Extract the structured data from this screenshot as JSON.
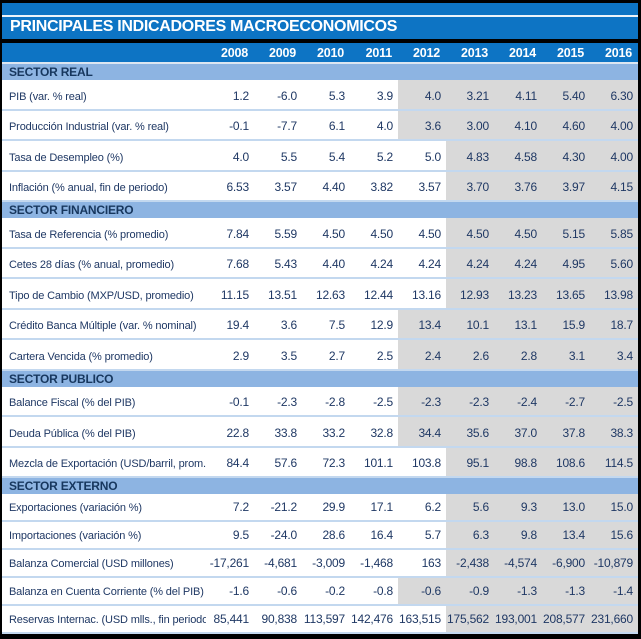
{
  "chart_data": {
    "type": "table",
    "title": "PRINCIPALES INDICADORES MACROECONOMICOS",
    "columns": [
      "2008",
      "2009",
      "2010",
      "2011",
      "2012",
      "2013",
      "2014",
      "2015",
      "2016"
    ],
    "sections": [
      {
        "label": "SECTOR REAL",
        "rows": [
          {
            "label": "PIB (var. % real)",
            "values": [
              "1.2",
              "-6.0",
              "5.3",
              "3.9",
              "4.0",
              "3.21",
              "4.11",
              "5.40",
              "6.30"
            ],
            "gray_from": "2012"
          },
          {
            "label": "Producción Industrial (var. % real)",
            "values": [
              "-0.1",
              "-7.7",
              "6.1",
              "4.0",
              "3.6",
              "3.00",
              "4.10",
              "4.60",
              "4.00"
            ],
            "gray_from": "2012"
          },
          {
            "label": "Tasa de Desempleo (%)",
            "values": [
              "4.0",
              "5.5",
              "5.4",
              "5.2",
              "5.0",
              "4.83",
              "4.58",
              "4.30",
              "4.00"
            ],
            "gray_from": "2013"
          },
          {
            "label": "Inflación (% anual, fin de periodo)",
            "values": [
              "6.53",
              "3.57",
              "4.40",
              "3.82",
              "3.57",
              "3.70",
              "3.76",
              "3.97",
              "4.15"
            ],
            "gray_from": "2013"
          }
        ]
      },
      {
        "label": "SECTOR FINANCIERO",
        "rows": [
          {
            "label": "Tasa de Referencia (% promedio)",
            "values": [
              "7.84",
              "5.59",
              "4.50",
              "4.50",
              "4.50",
              "4.50",
              "4.50",
              "5.15",
              "5.85"
            ],
            "gray_from": "2013"
          },
          {
            "label": "Cetes 28 días (% anual, promedio)",
            "values": [
              "7.68",
              "5.43",
              "4.40",
              "4.24",
              "4.24",
              "4.24",
              "4.24",
              "4.95",
              "5.60"
            ],
            "gray_from": "2013"
          },
          {
            "label": "Tipo de Cambio (MXP/USD, promedio)",
            "values": [
              "11.15",
              "13.51",
              "12.63",
              "12.44",
              "13.16",
              "12.93",
              "13.23",
              "13.65",
              "13.98"
            ],
            "gray_from": "2013"
          },
          {
            "label": "Crédito Banca Múltiple (var. % nominal)",
            "values": [
              "19.4",
              "3.6",
              "7.5",
              "12.9",
              "13.4",
              "10.1",
              "13.1",
              "15.9",
              "18.7"
            ],
            "gray_from": "2012"
          },
          {
            "label": "Cartera Vencida (% promedio)",
            "values": [
              "2.9",
              "3.5",
              "2.7",
              "2.5",
              "2.4",
              "2.6",
              "2.8",
              "3.1",
              "3.4"
            ],
            "gray_from": "2012"
          }
        ]
      },
      {
        "label": "SECTOR PUBLICO",
        "rows": [
          {
            "label": "Balance Fiscal (% del PIB)",
            "values": [
              "-0.1",
              "-2.3",
              "-2.8",
              "-2.5",
              "-2.3",
              "-2.3",
              "-2.4",
              "-2.7",
              "-2.5"
            ],
            "gray_from": "2012"
          },
          {
            "label": "Deuda Pública (% del PIB)",
            "values": [
              "22.8",
              "33.8",
              "33.2",
              "32.8",
              "34.4",
              "35.6",
              "37.0",
              "37.8",
              "38.3"
            ],
            "gray_from": "2012"
          },
          {
            "label": "Mezcla de Exportación (USD/barril, prom.)",
            "values": [
              "84.4",
              "57.6",
              "72.3",
              "101.1",
              "103.8",
              "95.1",
              "98.8",
              "108.6",
              "114.5"
            ],
            "gray_from": "2013"
          }
        ]
      },
      {
        "label": "SECTOR EXTERNO",
        "rows": [
          {
            "label": "Exportaciones (variación %)",
            "values": [
              "7.2",
              "-21.2",
              "29.9",
              "17.1",
              "6.2",
              "5.6",
              "9.3",
              "13.0",
              "15.0"
            ],
            "gray_from": "2013"
          },
          {
            "label": "Importaciones (variación %)",
            "values": [
              "9.5",
              "-24.0",
              "28.6",
              "16.4",
              "5.7",
              "6.3",
              "9.8",
              "13.4",
              "15.6"
            ],
            "gray_from": "2013"
          },
          {
            "label": "Balanza Comercial (USD millones)",
            "values": [
              "-17,261",
              "-4,681",
              "-3,009",
              "-1,468",
              "163",
              "-2,438",
              "-4,574",
              "-6,900",
              "-10,879"
            ],
            "gray_from": "2013"
          },
          {
            "label": "Balanza en Cuenta Corriente (% del PIB)",
            "values": [
              "-1.6",
              "-0.6",
              "-0.2",
              "-0.8",
              "-0.6",
              "-0.9",
              "-1.3",
              "-1.3",
              "-1.4"
            ],
            "gray_from": "2012"
          },
          {
            "label": "Reservas Internac. (USD mlls., fin periodo)",
            "values": [
              "85,441",
              "90,838",
              "113,597",
              "142,476",
              "163,515",
              "175,562",
              "193,001",
              "208,577",
              "231,660"
            ],
            "gray_from": "2013"
          }
        ]
      }
    ]
  },
  "colors": {
    "header_blue": "#0d74c4",
    "section_band_blue": "#8db4e2",
    "row_divider_blue": "#c3d8ef",
    "forecast_gray": "#d9d9d9",
    "value_text_navy": "#1f3864",
    "band_text_navy": "#17375e",
    "title_text": "#ffffff",
    "border_black": "#000000"
  }
}
